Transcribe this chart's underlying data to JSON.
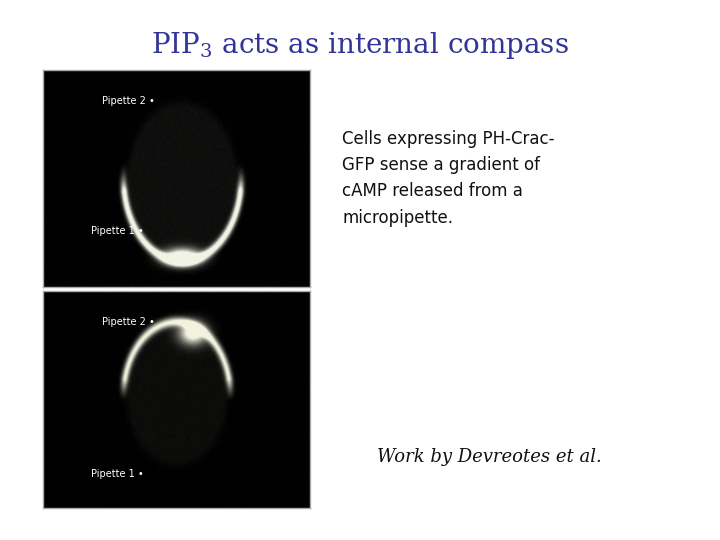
{
  "title_color": "#333399",
  "title_fontsize": 20,
  "bg_color": "#ffffff",
  "description_text": "Cells expressing PH-Crac-\nGFP sense a gradient of\ncAMP released from a\nmicropipette.",
  "description_fontsize": 12,
  "description_color": "#111111",
  "attribution_text": "Work by Devreotes et al.",
  "attribution_fontsize": 13,
  "attribution_color": "#111111",
  "panel_border_color": "#aaaaaa",
  "panel_bg": "#0a0a0a",
  "panel1_label1": "Pipette 2 •",
  "panel1_label2": "Pipette 1 •",
  "panel2_label1": "Pipette 2 •",
  "panel2_label2": "Pipette 1 •",
  "label_fontsize": 7,
  "label_color": "#ffffff"
}
